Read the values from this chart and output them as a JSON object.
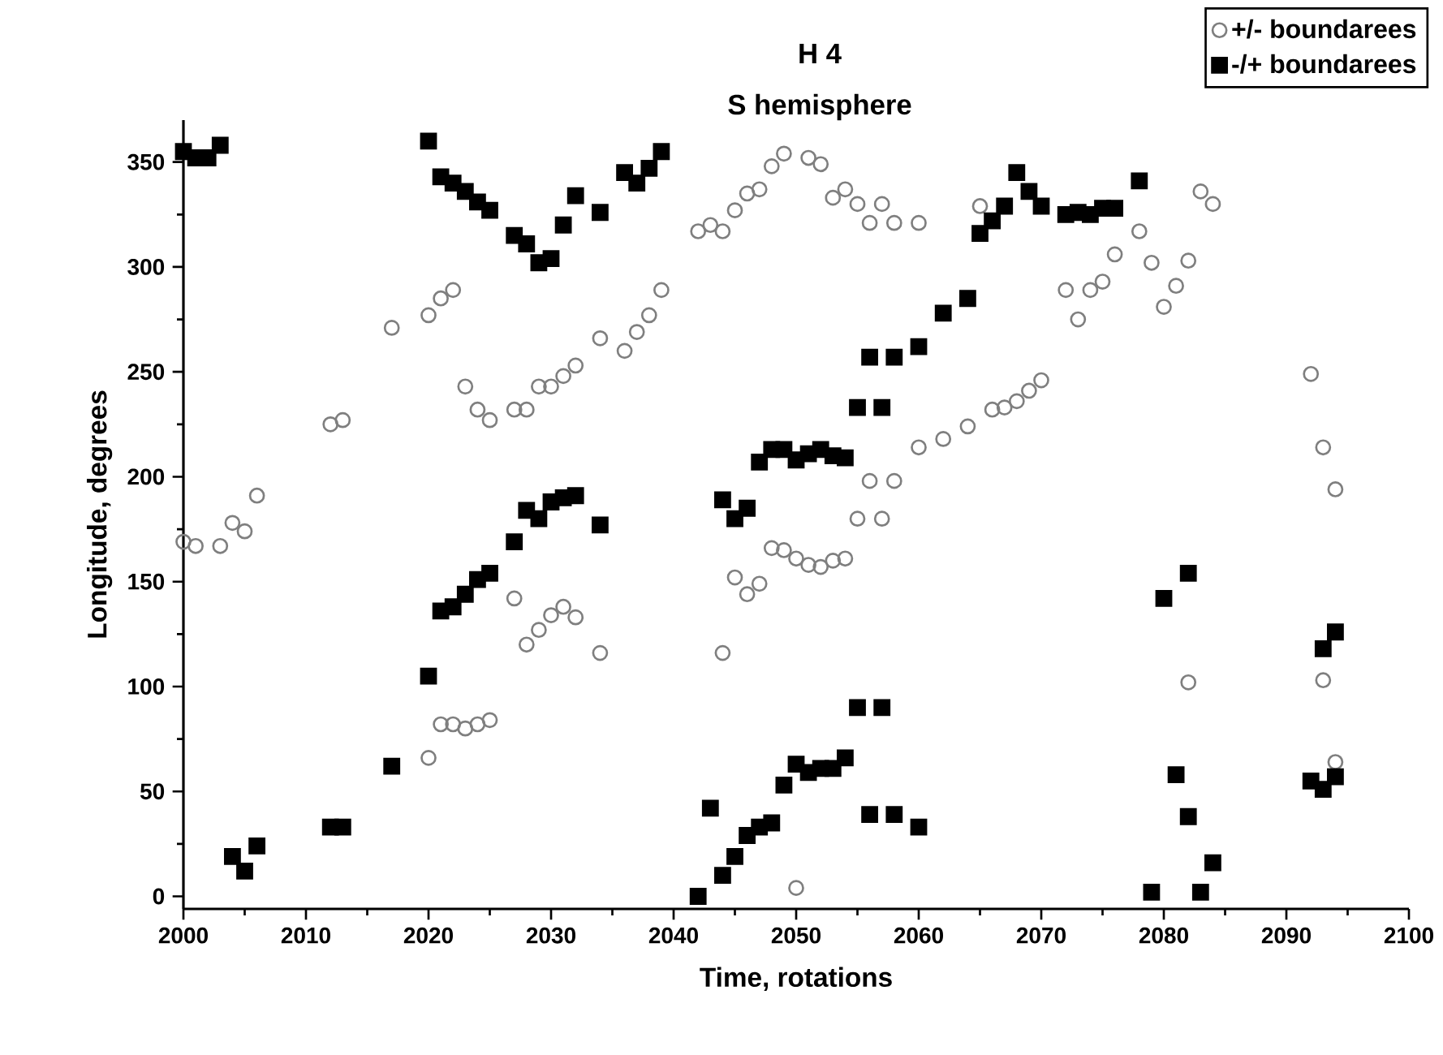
{
  "chart_data": {
    "type": "scatter",
    "title": "H 4",
    "subtitle": "S hemisphere",
    "xlabel": "Time, rotations",
    "ylabel": "Longitude, degrees",
    "xlim": [
      2000,
      2100
    ],
    "ylim": [
      -6,
      370
    ],
    "xticks": [
      2000,
      2010,
      2020,
      2030,
      2040,
      2050,
      2060,
      2070,
      2080,
      2090,
      2100
    ],
    "yticks": [
      0,
      50,
      100,
      150,
      200,
      250,
      300,
      350
    ],
    "grid": false,
    "legend": "top right",
    "series": [
      {
        "name": "+/- boundarees",
        "color": "#7f7f7f",
        "marker": "circle",
        "x": [
          2000,
          2001,
          2003,
          2004,
          2005,
          2006,
          2012,
          2013,
          2017,
          2020,
          2021,
          2022,
          2020,
          2021,
          2022,
          2023,
          2024,
          2025,
          2023,
          2024,
          2025,
          2027,
          2028,
          2029,
          2030,
          2031,
          2032,
          2034,
          2036,
          2037,
          2038,
          2039,
          2027,
          2028,
          2029,
          2030,
          2031,
          2032,
          2034,
          2042,
          2043,
          2044,
          2045,
          2046,
          2047,
          2048,
          2049,
          2051,
          2052,
          2053,
          2054,
          2055,
          2056,
          2057,
          2058,
          2060,
          2065,
          2044,
          2045,
          2046,
          2047,
          2048,
          2049,
          2050,
          2051,
          2052,
          2053,
          2054,
          2055,
          2057,
          2056,
          2058,
          2060,
          2062,
          2064,
          2066,
          2067,
          2068,
          2069,
          2070,
          2050,
          2083,
          2084,
          2078,
          2076,
          2079,
          2082,
          2081,
          2080,
          2072,
          2074,
          2075,
          2073,
          2092,
          2093,
          2094,
          2082,
          2093,
          2094
        ],
        "values": [
          169,
          167,
          167,
          178,
          174,
          191,
          225,
          227,
          271,
          277,
          285,
          289,
          66,
          82,
          82,
          80,
          82,
          84,
          243,
          232,
          227,
          232,
          232,
          243,
          243,
          248,
          253,
          266,
          260,
          269,
          277,
          289,
          142,
          120,
          127,
          134,
          138,
          133,
          116,
          317,
          320,
          317,
          327,
          335,
          337,
          348,
          354,
          352,
          349,
          333,
          337,
          330,
          321,
          330,
          321,
          321,
          329,
          116,
          152,
          144,
          149,
          166,
          165,
          161,
          158,
          157,
          160,
          161,
          180,
          180,
          198,
          198,
          214,
          218,
          224,
          232,
          233,
          236,
          241,
          246,
          4,
          336,
          330,
          317,
          306,
          302,
          303,
          291,
          281,
          289,
          289,
          293,
          275,
          249,
          214,
          194,
          102,
          103,
          64
        ]
      },
      {
        "name": "-/+ boundarees",
        "color": "#000000",
        "marker": "square",
        "x": [
          2000,
          2001,
          2002,
          2003,
          2004,
          2005,
          2006,
          2012,
          2013,
          2017,
          2020,
          2020,
          2021,
          2022,
          2023,
          2024,
          2025,
          2027,
          2028,
          2029,
          2030,
          2031,
          2032,
          2034,
          2036,
          2037,
          2038,
          2039,
          2021,
          2022,
          2023,
          2024,
          2025,
          2027,
          2028,
          2029,
          2030,
          2031,
          2032,
          2034,
          2042,
          2043,
          2044,
          2045,
          2046,
          2047,
          2048,
          2049,
          2050,
          2051,
          2052,
          2053,
          2054,
          2055,
          2057,
          2056,
          2058,
          2060,
          2044,
          2045,
          2046,
          2047,
          2048,
          2049,
          2050,
          2051,
          2052,
          2053,
          2054,
          2055,
          2057,
          2056,
          2058,
          2060,
          2062,
          2064,
          2065,
          2066,
          2067,
          2068,
          2069,
          2070,
          2072,
          2073,
          2074,
          2075,
          2076,
          2078,
          2079,
          2080,
          2081,
          2082,
          2082,
          2083,
          2084,
          2092,
          2093,
          2094,
          2093,
          2094
        ],
        "values": [
          355,
          352,
          352,
          358,
          19,
          12,
          24,
          33,
          33,
          62,
          360,
          105,
          343,
          340,
          336,
          331,
          327,
          315,
          311,
          302,
          304,
          320,
          334,
          326,
          345,
          340,
          347,
          355,
          136,
          138,
          144,
          151,
          154,
          169,
          184,
          180,
          188,
          190,
          191,
          177,
          0,
          42,
          10,
          19,
          29,
          33,
          35,
          53,
          63,
          59,
          61,
          61,
          66,
          90,
          90,
          39,
          39,
          33,
          189,
          180,
          185,
          207,
          213,
          213,
          208,
          211,
          213,
          210,
          209,
          233,
          233,
          257,
          257,
          262,
          278,
          285,
          316,
          322,
          329,
          345,
          336,
          329,
          325,
          326,
          325,
          328,
          328,
          341,
          2,
          142,
          58,
          154,
          38,
          2,
          16,
          55,
          51,
          57,
          118,
          126
        ]
      }
    ]
  }
}
